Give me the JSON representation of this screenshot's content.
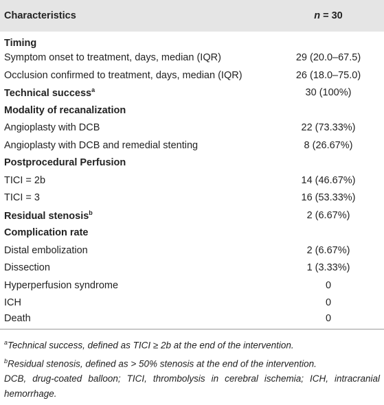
{
  "header": {
    "label": "Characteristics",
    "value": {
      "var": "n",
      "rest": "= 30"
    }
  },
  "rows": [
    {
      "label": "Timing",
      "bold": true
    },
    {
      "label": "Symptom onset to treatment, days, median (IQR)",
      "value": "29 (20.0–67.5)"
    },
    {
      "label": "Occlusion confirmed to treatment, days, median (IQR)",
      "value": "26 (18.0–75.0)"
    },
    {
      "label": "Technical success",
      "sup": "a",
      "value": "30 (100%)",
      "bold": true
    },
    {
      "label": "Modality of recanalization",
      "bold": true
    },
    {
      "label": "Angioplasty with DCB",
      "value": "22 (73.33%)"
    },
    {
      "label": "Angioplasty with DCB and remedial stenting",
      "value": "8 (26.67%)"
    },
    {
      "label": "Postprocedural Perfusion",
      "bold": true
    },
    {
      "label": "TICI = 2b",
      "value": "14 (46.67%)"
    },
    {
      "label": "TICI = 3",
      "value": "16 (53.33%)"
    },
    {
      "label": "Residual stenosis",
      "sup": "b",
      "value": "2 (6.67%)",
      "bold": true
    },
    {
      "label": "Complication rate",
      "bold": true
    },
    {
      "label": "Distal embolization",
      "value": "2 (6.67%)"
    },
    {
      "label": "Dissection",
      "value": "1 (3.33%)"
    },
    {
      "label": "Hyperperfusion syndrome",
      "value": "0"
    },
    {
      "label": "ICH",
      "value": "0"
    },
    {
      "label": "Death",
      "value": "0"
    }
  ],
  "footnotes": [
    {
      "sup": "a",
      "text": "Technical success, defined as TICI ≥ 2b at the end of the intervention."
    },
    {
      "sup": "b",
      "text": "Residual stenosis, defined as > 50% stenosis at the end of the intervention."
    },
    {
      "text": "DCB, drug-coated balloon; TICI, thrombolysis in cerebral ischemia; ICH, intracranial hemorrhage."
    }
  ]
}
